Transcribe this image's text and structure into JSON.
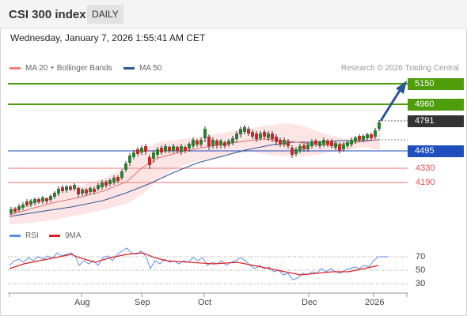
{
  "header": {
    "title": "CSI 300 index",
    "timeframe": "DAILY"
  },
  "timestamp": "Wednesday, January 7, 2026 1:55:41 AM CET",
  "legend": {
    "ma20": {
      "label": "MA 20 + Bollinger Bands",
      "color": "#f08080"
    },
    "ma50": {
      "label": "MA 50",
      "color": "#2b5797"
    }
  },
  "credit": "Research © 2026 Trading Central",
  "levels": {
    "r2": {
      "value": "5150",
      "color": "#4f9d0b"
    },
    "r1": {
      "value": "4960",
      "color": "#4f9d0b"
    },
    "last": {
      "value": "4791",
      "color": "#333333"
    },
    "pivot": {
      "value": "4495",
      "color": "#1f4fbf"
    },
    "s1": {
      "value": "4330",
      "color": "#d9534f"
    },
    "s2": {
      "value": "4190",
      "color": "#d9534f"
    }
  },
  "rsi_panel": {
    "legend_rsi": "RSI",
    "legend_ma": "9MA",
    "levels": [
      "70",
      "50",
      "30"
    ]
  },
  "x_axis": [
    "Aug",
    "Sep",
    "Oct",
    "Dec",
    "2026"
  ]
}
